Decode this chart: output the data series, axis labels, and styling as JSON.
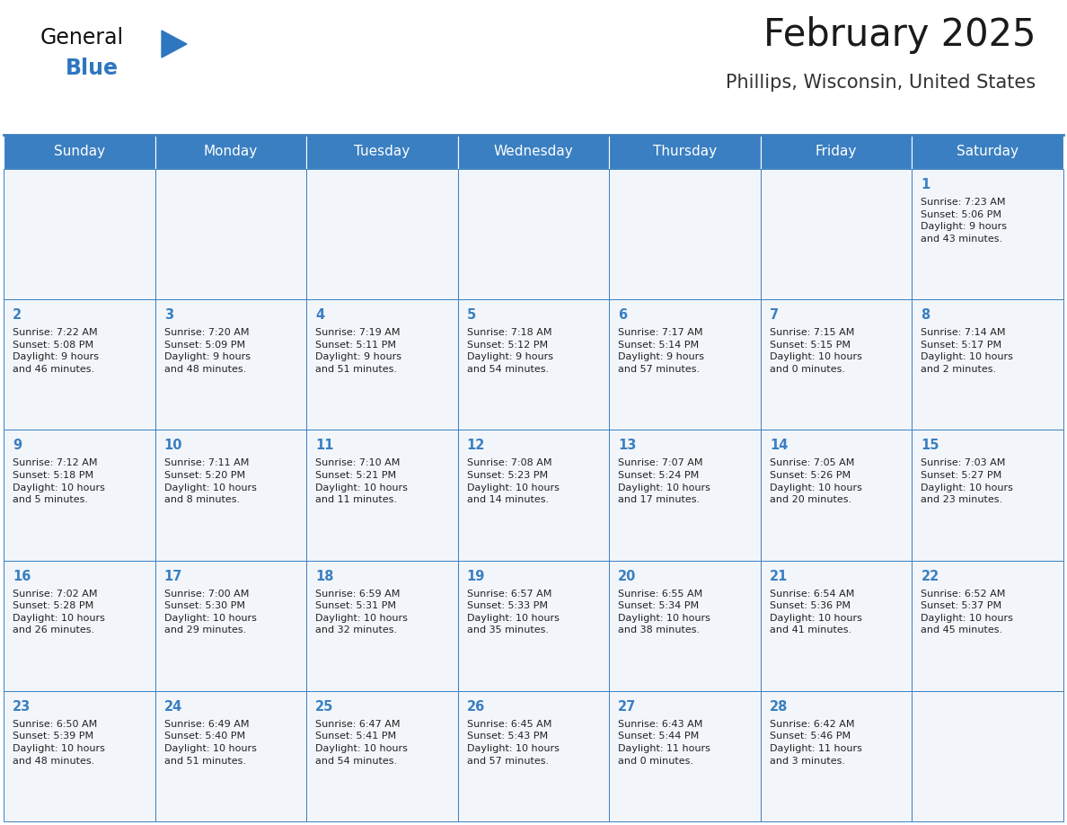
{
  "title": "February 2025",
  "subtitle": "Phillips, Wisconsin, United States",
  "days_of_week": [
    "Sunday",
    "Monday",
    "Tuesday",
    "Wednesday",
    "Thursday",
    "Friday",
    "Saturday"
  ],
  "header_bg": "#3a7fc1",
  "header_text": "#ffffff",
  "cell_bg": "#f2f6fb",
  "cell_bg_empty": "#eef2f7",
  "border_color": "#3a7fc1",
  "day_num_color": "#3a7fc1",
  "text_color": "#222222",
  "logo_general_color": "#111111",
  "logo_blue_color": "#2e76c0",
  "calendar_data": [
    [
      null,
      null,
      null,
      null,
      null,
      null,
      {
        "day": 1,
        "sunrise": "7:23 AM",
        "sunset": "5:06 PM",
        "daylight": "9 hours\nand 43 minutes."
      }
    ],
    [
      {
        "day": 2,
        "sunrise": "7:22 AM",
        "sunset": "5:08 PM",
        "daylight": "9 hours\nand 46 minutes."
      },
      {
        "day": 3,
        "sunrise": "7:20 AM",
        "sunset": "5:09 PM",
        "daylight": "9 hours\nand 48 minutes."
      },
      {
        "day": 4,
        "sunrise": "7:19 AM",
        "sunset": "5:11 PM",
        "daylight": "9 hours\nand 51 minutes."
      },
      {
        "day": 5,
        "sunrise": "7:18 AM",
        "sunset": "5:12 PM",
        "daylight": "9 hours\nand 54 minutes."
      },
      {
        "day": 6,
        "sunrise": "7:17 AM",
        "sunset": "5:14 PM",
        "daylight": "9 hours\nand 57 minutes."
      },
      {
        "day": 7,
        "sunrise": "7:15 AM",
        "sunset": "5:15 PM",
        "daylight": "10 hours\nand 0 minutes."
      },
      {
        "day": 8,
        "sunrise": "7:14 AM",
        "sunset": "5:17 PM",
        "daylight": "10 hours\nand 2 minutes."
      }
    ],
    [
      {
        "day": 9,
        "sunrise": "7:12 AM",
        "sunset": "5:18 PM",
        "daylight": "10 hours\nand 5 minutes."
      },
      {
        "day": 10,
        "sunrise": "7:11 AM",
        "sunset": "5:20 PM",
        "daylight": "10 hours\nand 8 minutes."
      },
      {
        "day": 11,
        "sunrise": "7:10 AM",
        "sunset": "5:21 PM",
        "daylight": "10 hours\nand 11 minutes."
      },
      {
        "day": 12,
        "sunrise": "7:08 AM",
        "sunset": "5:23 PM",
        "daylight": "10 hours\nand 14 minutes."
      },
      {
        "day": 13,
        "sunrise": "7:07 AM",
        "sunset": "5:24 PM",
        "daylight": "10 hours\nand 17 minutes."
      },
      {
        "day": 14,
        "sunrise": "7:05 AM",
        "sunset": "5:26 PM",
        "daylight": "10 hours\nand 20 minutes."
      },
      {
        "day": 15,
        "sunrise": "7:03 AM",
        "sunset": "5:27 PM",
        "daylight": "10 hours\nand 23 minutes."
      }
    ],
    [
      {
        "day": 16,
        "sunrise": "7:02 AM",
        "sunset": "5:28 PM",
        "daylight": "10 hours\nand 26 minutes."
      },
      {
        "day": 17,
        "sunrise": "7:00 AM",
        "sunset": "5:30 PM",
        "daylight": "10 hours\nand 29 minutes."
      },
      {
        "day": 18,
        "sunrise": "6:59 AM",
        "sunset": "5:31 PM",
        "daylight": "10 hours\nand 32 minutes."
      },
      {
        "day": 19,
        "sunrise": "6:57 AM",
        "sunset": "5:33 PM",
        "daylight": "10 hours\nand 35 minutes."
      },
      {
        "day": 20,
        "sunrise": "6:55 AM",
        "sunset": "5:34 PM",
        "daylight": "10 hours\nand 38 minutes."
      },
      {
        "day": 21,
        "sunrise": "6:54 AM",
        "sunset": "5:36 PM",
        "daylight": "10 hours\nand 41 minutes."
      },
      {
        "day": 22,
        "sunrise": "6:52 AM",
        "sunset": "5:37 PM",
        "daylight": "10 hours\nand 45 minutes."
      }
    ],
    [
      {
        "day": 23,
        "sunrise": "6:50 AM",
        "sunset": "5:39 PM",
        "daylight": "10 hours\nand 48 minutes."
      },
      {
        "day": 24,
        "sunrise": "6:49 AM",
        "sunset": "5:40 PM",
        "daylight": "10 hours\nand 51 minutes."
      },
      {
        "day": 25,
        "sunrise": "6:47 AM",
        "sunset": "5:41 PM",
        "daylight": "10 hours\nand 54 minutes."
      },
      {
        "day": 26,
        "sunrise": "6:45 AM",
        "sunset": "5:43 PM",
        "daylight": "10 hours\nand 57 minutes."
      },
      {
        "day": 27,
        "sunrise": "6:43 AM",
        "sunset": "5:44 PM",
        "daylight": "11 hours\nand 0 minutes."
      },
      {
        "day": 28,
        "sunrise": "6:42 AM",
        "sunset": "5:46 PM",
        "daylight": "11 hours\nand 3 minutes."
      },
      null
    ]
  ],
  "fig_width": 11.88,
  "fig_height": 9.18,
  "dpi": 100
}
